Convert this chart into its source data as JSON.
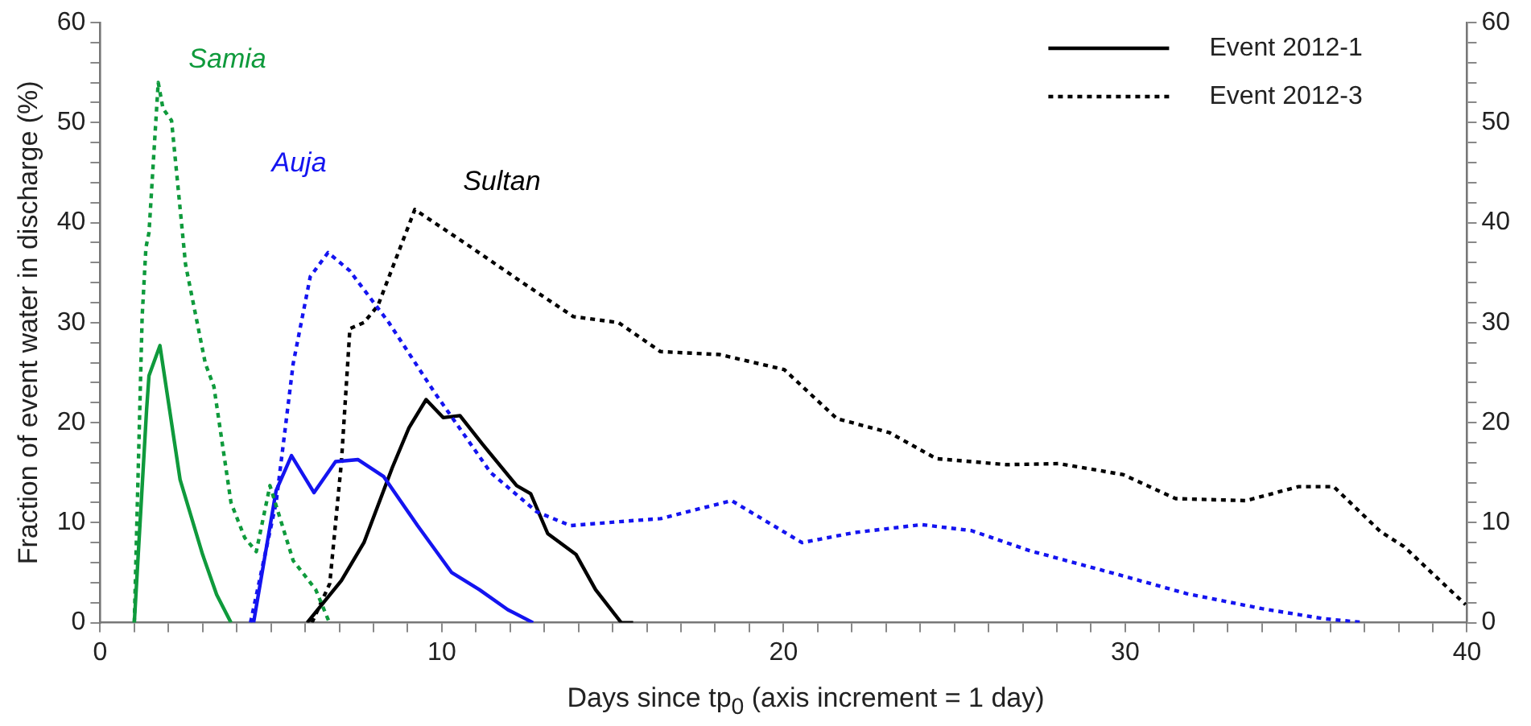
{
  "chart_data": {
    "type": "line",
    "xlabel": "Days since tp$_{0}$ (axis increment = 1 day)",
    "ylabel": "Fraction of event water in discharge (%)",
    "xlim": [
      0,
      40
    ],
    "xticks": [
      0,
      {
        "value": 1,
        "label": null
      },
      {
        "value": 2,
        "label": null
      },
      {
        "value": 3,
        "label": null
      },
      {
        "value": 4,
        "label": null
      },
      {
        "value": 5,
        "label": null
      },
      {
        "value": 6,
        "label": null
      },
      {
        "value": 7,
        "label": null
      },
      {
        "value": 8,
        "label": null
      },
      {
        "value": 9,
        "label": null
      },
      10,
      {
        "value": 11,
        "label": null
      },
      {
        "value": 12,
        "label": null
      },
      {
        "value": 13,
        "label": null
      },
      {
        "value": 14,
        "label": null
      },
      {
        "value": 15,
        "label": null
      },
      {
        "value": 16,
        "label": null
      },
      {
        "value": 17,
        "label": null
      },
      {
        "value": 18,
        "label": null
      },
      {
        "value": 19,
        "label": null
      },
      20,
      {
        "value": 21,
        "label": null
      },
      {
        "value": 22,
        "label": null
      },
      {
        "value": 23,
        "label": null
      },
      {
        "value": 24,
        "label": null
      },
      {
        "value": 25,
        "label": null
      },
      {
        "value": 26,
        "label": null
      },
      {
        "value": 27,
        "label": null
      },
      {
        "value": 28,
        "label": null
      },
      {
        "value": 29,
        "label": null
      },
      30,
      {
        "value": 31,
        "label": null
      },
      {
        "value": 32,
        "label": null
      },
      {
        "value": 33,
        "label": null
      },
      {
        "value": 34,
        "label": null
      },
      {
        "value": 35,
        "label": null
      },
      {
        "value": 36,
        "label": null
      },
      {
        "value": 37,
        "label": null
      },
      {
        "value": 38,
        "label": null
      },
      {
        "value": 39,
        "label": null
      },
      40
    ],
    "ylim": [
      0,
      60
    ],
    "yticks": [
      0,
      {
        "value": 2,
        "label": null
      },
      {
        "value": 4,
        "label": null
      },
      {
        "value": 6,
        "label": null
      },
      {
        "value": 8,
        "label": null
      },
      10,
      {
        "value": 12,
        "label": null
      },
      {
        "value": 14,
        "label": null
      },
      {
        "value": 16,
        "label": null
      },
      {
        "value": 18,
        "label": null
      },
      20,
      {
        "value": 22,
        "label": null
      },
      {
        "value": 24,
        "label": null
      },
      {
        "value": 26,
        "label": null
      },
      {
        "value": 28,
        "label": null
      },
      30,
      {
        "value": 32,
        "label": null
      },
      {
        "value": 34,
        "label": null
      },
      {
        "value": 36,
        "label": null
      },
      {
        "value": 38,
        "label": null
      },
      40,
      {
        "value": 42,
        "label": null
      },
      {
        "value": 44,
        "label": null
      },
      {
        "value": 46,
        "label": null
      },
      {
        "value": 48,
        "label": null
      },
      50,
      {
        "value": 52,
        "label": null
      },
      {
        "value": 54,
        "label": null
      },
      {
        "value": 56,
        "label": null
      },
      {
        "value": 58,
        "label": null
      },
      60
    ],
    "y2lim": [
      0,
      60
    ],
    "y2ticks": [
      0,
      {
        "value": 2,
        "label": null
      },
      {
        "value": 4,
        "label": null
      },
      {
        "value": 6,
        "label": null
      },
      {
        "value": 8,
        "label": null
      },
      10,
      {
        "value": 12,
        "label": null
      },
      {
        "value": 14,
        "label": null
      },
      {
        "value": 16,
        "label": null
      },
      {
        "value": 18,
        "label": null
      },
      20,
      {
        "value": 22,
        "label": null
      },
      {
        "value": 24,
        "label": null
      },
      {
        "value": 26,
        "label": null
      },
      {
        "value": 28,
        "label": null
      },
      30,
      {
        "value": 32,
        "label": null
      },
      {
        "value": 34,
        "label": null
      },
      {
        "value": 36,
        "label": null
      },
      {
        "value": 38,
        "label": null
      },
      40,
      {
        "value": 42,
        "label": null
      },
      {
        "value": 44,
        "label": null
      },
      {
        "value": 46,
        "label": null
      },
      {
        "value": 48,
        "label": null
      },
      50,
      {
        "value": 52,
        "label": null
      },
      {
        "value": 54,
        "label": null
      },
      {
        "value": 56,
        "label": null
      },
      {
        "value": 58,
        "label": null
      },
      60
    ],
    "grid": false,
    "legend": "top right",
    "marker": "none",
    "annotations": [
      "Samia",
      "Auja",
      "Sultan"
    ],
    "series": [
      {
        "color": "#0f9a3c",
        "line_style": "solid",
        "x": [
          1.0,
          1.36,
          1.43,
          1.75,
          2.34,
          3.0,
          3.41,
          3.83
        ],
        "values": [
          0,
          21.3,
          24.7,
          27.7,
          14.3,
          6.8,
          2.8,
          0
        ]
      },
      {
        "color": "#0f9a3c",
        "line_style": "dotted",
        "x": [
          1.0,
          1.23,
          1.34,
          1.43,
          1.7,
          1.84,
          2.09,
          2.5,
          3.08,
          3.33,
          3.83,
          4.23,
          4.57,
          4.97,
          5.65,
          6.31,
          6.71
        ],
        "values": [
          0,
          30.6,
          37.5,
          39,
          54,
          51.4,
          50.2,
          35.8,
          25.9,
          23.6,
          12,
          8.5,
          7.1,
          13.7,
          6.2,
          3.3,
          0
        ]
      },
      {
        "color": "#1414f0",
        "line_style": "solid",
        "x": [
          4.49,
          5.15,
          5.6,
          6.26,
          6.89,
          7.55,
          8.3,
          9.29,
          10.29,
          11.1,
          11.93,
          12.67
        ],
        "values": [
          0,
          13.2,
          16.7,
          13,
          16.1,
          16.3,
          14.6,
          9.7,
          5,
          3.3,
          1.3,
          0
        ]
      },
      {
        "color": "#1414f0",
        "line_style": "dotted",
        "x": [
          4.4,
          5.15,
          5.65,
          6.15,
          6.67,
          7.3,
          8.45,
          9.79,
          11.43,
          12.77,
          13.76,
          15.2,
          16.4,
          18.48,
          20.54,
          22.06,
          24.04,
          25.5,
          27.2,
          29.8,
          31.8,
          34.0,
          35.8,
          37.0
        ],
        "values": [
          0,
          12,
          25.9,
          34.6,
          37,
          35.2,
          30,
          23,
          15,
          11.1,
          9.7,
          10.1,
          10.4,
          12.2,
          8,
          9,
          9.8,
          9.2,
          7.2,
          4.8,
          2.9,
          1.4,
          0.4,
          0
        ]
      },
      {
        "name": "Event 2012-1",
        "color": "#000000",
        "line_style": "solid",
        "x": [
          6.06,
          7.06,
          7.72,
          8.55,
          9.04,
          9.54,
          10.04,
          10.53,
          11.2,
          12.19,
          12.6,
          13.1,
          13.93,
          14.5,
          15.25,
          15.6
        ],
        "values": [
          0,
          4.2,
          8,
          15.5,
          19.5,
          22.3,
          20.5,
          20.7,
          17.8,
          13.7,
          12.9,
          8.9,
          6.8,
          3.3,
          0,
          0
        ]
      },
      {
        "name": "Event 2012-3",
        "color": "#000000",
        "line_style": "dotted",
        "x": [
          6.2,
          6.72,
          7.06,
          7.31,
          7.72,
          8.13,
          9.21,
          10.87,
          12.36,
          13.85,
          15.17,
          16.4,
          18.14,
          20.02,
          21.56,
          23.1,
          24.47,
          26.52,
          28.06,
          29.94,
          31.48,
          33.54,
          35.07,
          36.1,
          37.47,
          38.16,
          39.96
        ],
        "values": [
          0,
          3.9,
          16,
          29.4,
          30,
          31.7,
          41.3,
          37.5,
          34,
          30.6,
          30,
          27.1,
          26.8,
          25.3,
          20.4,
          19,
          16.4,
          15.8,
          15.9,
          14.8,
          12.4,
          12.2,
          13.6,
          13.6,
          9.1,
          7.6,
          1.8
        ]
      }
    ]
  }
}
